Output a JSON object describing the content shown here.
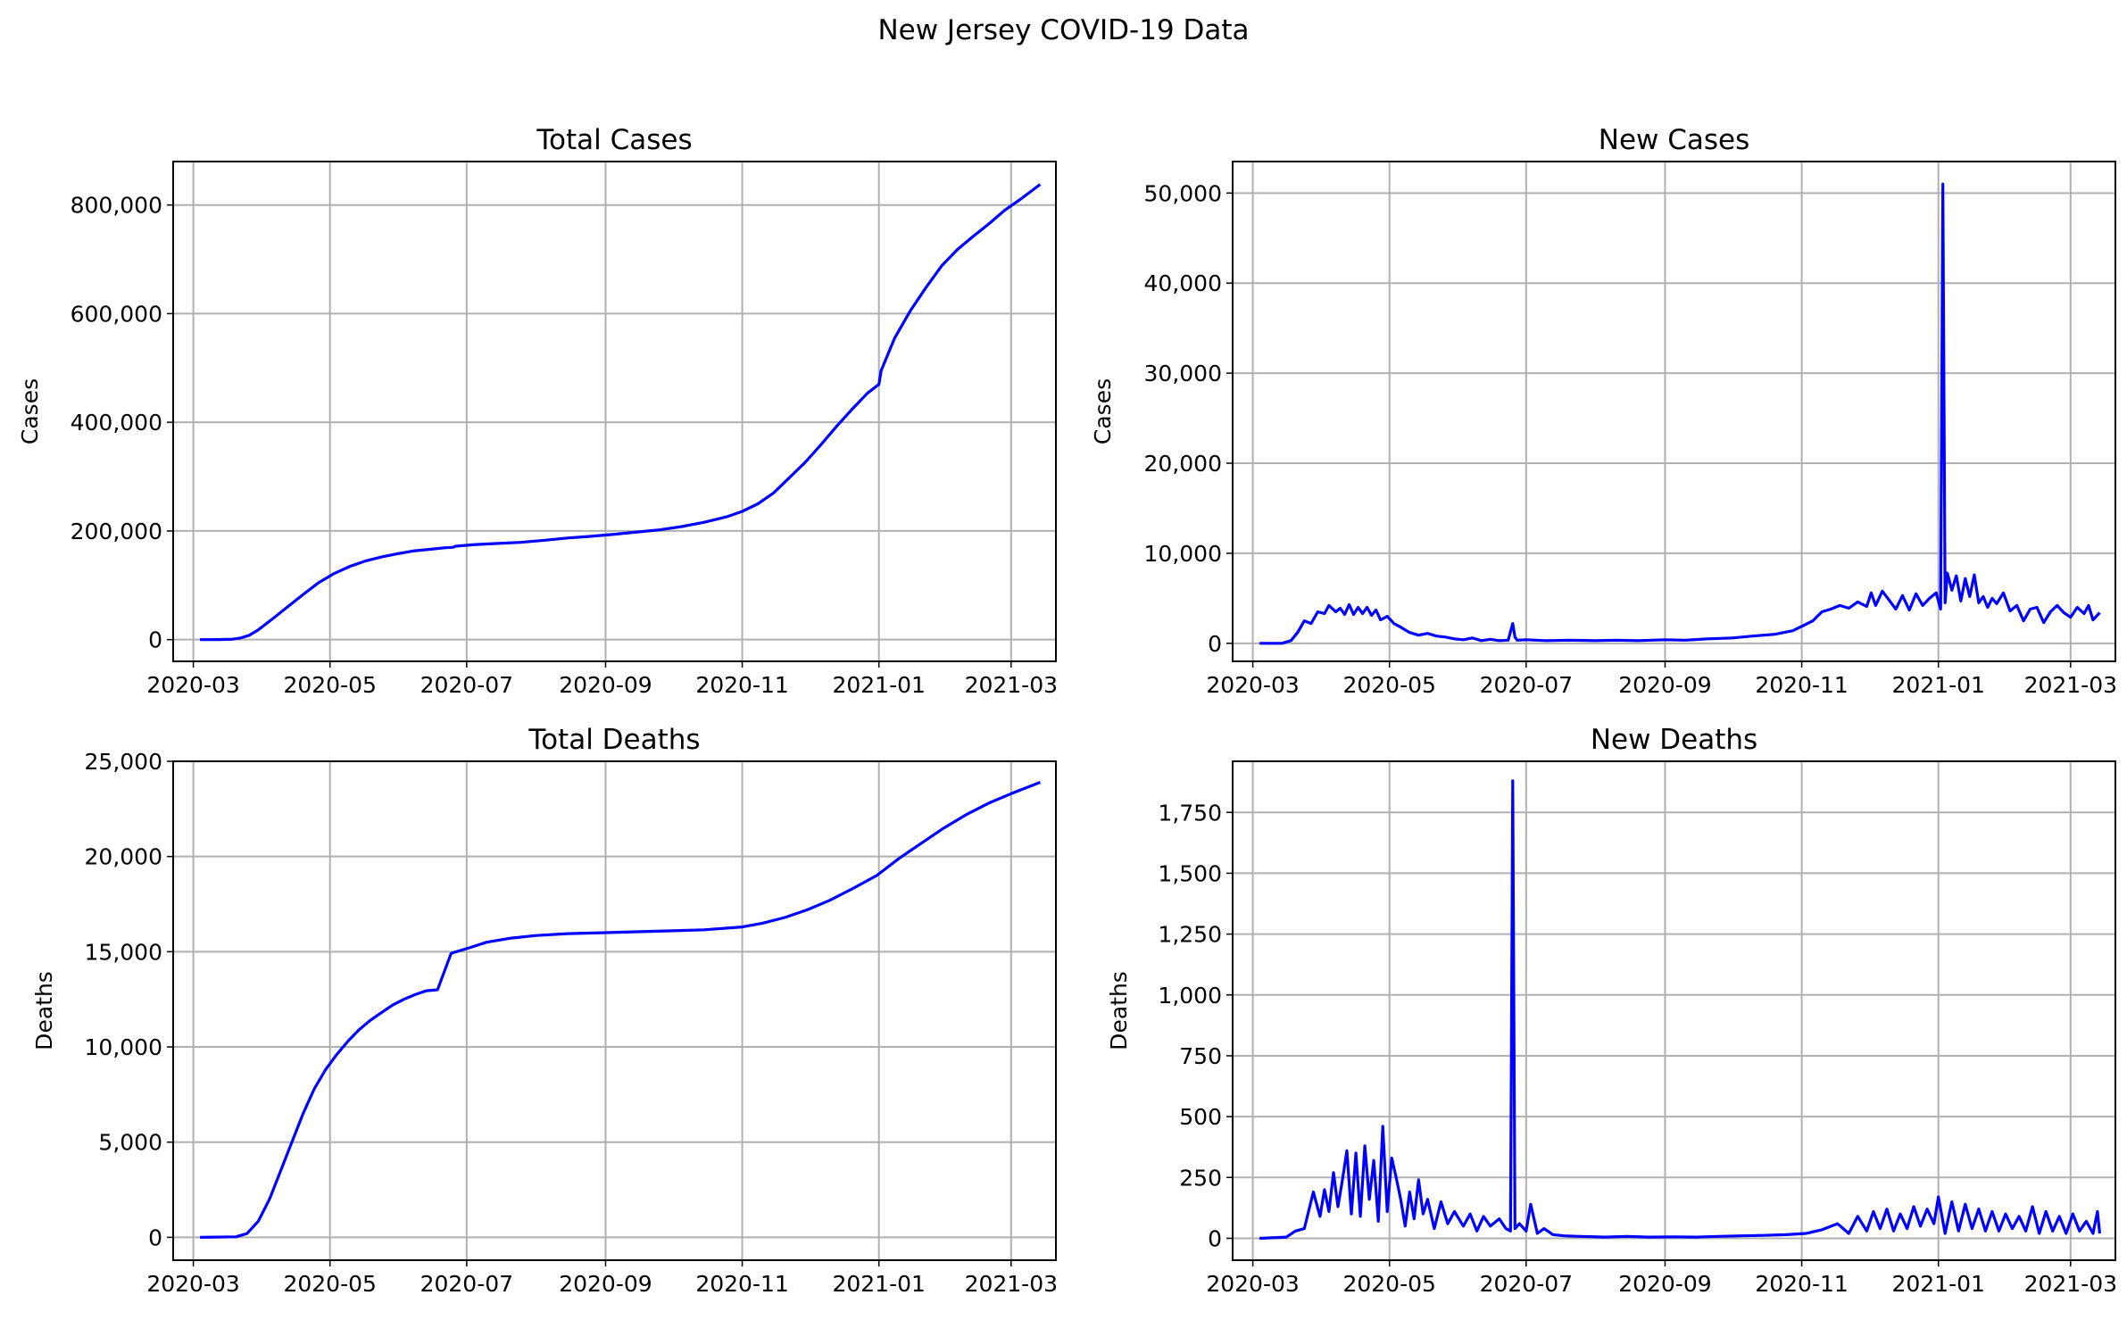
{
  "figure": {
    "title": "New Jersey COVID-19 Data"
  },
  "colors": {
    "line": "#0000ff",
    "grid": "#b0b0b0",
    "axes": "#000000"
  },
  "chart_data": [
    {
      "id": "total-cases",
      "type": "line",
      "title": "Total Cases",
      "xlabel": "",
      "ylabel": "Cases",
      "xlim": [
        "2020-02-21",
        "2021-03-21"
      ],
      "ylim": [
        -40000,
        880000
      ],
      "xticks": [
        "2020-03",
        "2020-05",
        "2020-07",
        "2020-09",
        "2020-11",
        "2021-01",
        "2021-03"
      ],
      "yticks": [
        0,
        200000,
        400000,
        600000,
        800000
      ],
      "ytick_labels": [
        "0",
        "200,000",
        "400,000",
        "600,000",
        "800,000"
      ],
      "grid": true,
      "series": [
        {
          "x": [
            "2020-03-04",
            "2020-03-12",
            "2020-03-18",
            "2020-03-22",
            "2020-03-26",
            "2020-03-30",
            "2020-04-05",
            "2020-04-12",
            "2020-04-19",
            "2020-04-26",
            "2020-05-03",
            "2020-05-10",
            "2020-05-17",
            "2020-05-24",
            "2020-05-31",
            "2020-06-07",
            "2020-06-14",
            "2020-06-21",
            "2020-06-25",
            "2020-06-26",
            "2020-07-05",
            "2020-07-15",
            "2020-07-25",
            "2020-08-05",
            "2020-08-15",
            "2020-08-25",
            "2020-09-05",
            "2020-09-15",
            "2020-09-25",
            "2020-10-05",
            "2020-10-15",
            "2020-10-25",
            "2020-11-01",
            "2020-11-08",
            "2020-11-15",
            "2020-11-22",
            "2020-11-29",
            "2020-12-06",
            "2020-12-13",
            "2020-12-20",
            "2020-12-27",
            "2021-01-01",
            "2021-01-02",
            "2021-01-08",
            "2021-01-15",
            "2021-01-22",
            "2021-01-29",
            "2021-02-05",
            "2021-02-12",
            "2021-02-19",
            "2021-02-26",
            "2021-03-05",
            "2021-03-14"
          ],
          "y": [
            0,
            100,
            600,
            2800,
            8000,
            18000,
            37000,
            60000,
            83000,
            105000,
            122000,
            135000,
            145000,
            152000,
            158000,
            163000,
            166000,
            169000,
            170000,
            172000,
            175000,
            177000,
            179000,
            183000,
            187000,
            190000,
            194000,
            198000,
            202000,
            208000,
            216000,
            226000,
            236000,
            250000,
            270000,
            298000,
            326000,
            358000,
            392000,
            424000,
            454000,
            470000,
            495000,
            555000,
            605000,
            648000,
            688000,
            718000,
            742000,
            765000,
            790000,
            810000,
            838000
          ]
        }
      ]
    },
    {
      "id": "new-cases",
      "type": "line",
      "title": "New Cases",
      "xlabel": "",
      "ylabel": "Cases",
      "xlim": [
        "2020-02-21",
        "2021-03-21"
      ],
      "ylim": [
        -2000,
        53500
      ],
      "xticks": [
        "2020-03",
        "2020-05",
        "2020-07",
        "2020-09",
        "2020-11",
        "2021-01",
        "2021-03"
      ],
      "yticks": [
        0,
        10000,
        20000,
        30000,
        40000,
        50000
      ],
      "ytick_labels": [
        "0",
        "10,000",
        "20,000",
        "30,000",
        "40,000",
        "50,000"
      ],
      "grid": true,
      "series": [
        {
          "x": [
            "2020-03-04",
            "2020-03-14",
            "2020-03-18",
            "2020-03-21",
            "2020-03-24",
            "2020-03-27",
            "2020-03-30",
            "2020-04-02",
            "2020-04-04",
            "2020-04-07",
            "2020-04-09",
            "2020-04-11",
            "2020-04-13",
            "2020-04-15",
            "2020-04-17",
            "2020-04-19",
            "2020-04-21",
            "2020-04-23",
            "2020-04-25",
            "2020-04-27",
            "2020-04-30",
            "2020-05-03",
            "2020-05-06",
            "2020-05-10",
            "2020-05-14",
            "2020-05-18",
            "2020-05-22",
            "2020-05-26",
            "2020-05-30",
            "2020-06-03",
            "2020-06-07",
            "2020-06-11",
            "2020-06-15",
            "2020-06-19",
            "2020-06-23",
            "2020-06-25",
            "2020-06-26",
            "2020-06-27",
            "2020-07-01",
            "2020-07-10",
            "2020-07-20",
            "2020-08-01",
            "2020-08-10",
            "2020-08-20",
            "2020-09-01",
            "2020-09-10",
            "2020-09-20",
            "2020-10-01",
            "2020-10-10",
            "2020-10-20",
            "2020-10-28",
            "2020-11-02",
            "2020-11-06",
            "2020-11-10",
            "2020-11-14",
            "2020-11-18",
            "2020-11-22",
            "2020-11-26",
            "2020-11-30",
            "2020-12-02",
            "2020-12-04",
            "2020-12-07",
            "2020-12-10",
            "2020-12-13",
            "2020-12-16",
            "2020-12-19",
            "2020-12-22",
            "2020-12-25",
            "2020-12-28",
            "2020-12-31",
            "2021-01-02",
            "2021-01-03",
            "2021-01-04",
            "2021-01-05",
            "2021-01-07",
            "2021-01-09",
            "2021-01-11",
            "2021-01-13",
            "2021-01-15",
            "2021-01-17",
            "2021-01-19",
            "2021-01-21",
            "2021-01-23",
            "2021-01-25",
            "2021-01-27",
            "2021-01-30",
            "2021-02-02",
            "2021-02-05",
            "2021-02-08",
            "2021-02-11",
            "2021-02-14",
            "2021-02-17",
            "2021-02-20",
            "2021-02-23",
            "2021-02-26",
            "2021-03-01",
            "2021-03-04",
            "2021-03-07",
            "2021-03-09",
            "2021-03-11",
            "2021-03-14"
          ],
          "y": [
            0,
            0,
            300,
            1200,
            2500,
            2200,
            3500,
            3300,
            4200,
            3500,
            3900,
            3200,
            4300,
            3200,
            4000,
            3300,
            4000,
            3100,
            3700,
            2600,
            3000,
            2200,
            1800,
            1200,
            900,
            1100,
            800,
            700,
            500,
            400,
            600,
            300,
            450,
            300,
            350,
            2200,
            700,
            350,
            400,
            300,
            350,
            300,
            350,
            300,
            400,
            350,
            500,
            600,
            800,
            1000,
            1400,
            2000,
            2500,
            3500,
            3800,
            4200,
            3900,
            4600,
            4100,
            5600,
            4200,
            5800,
            4800,
            3800,
            5300,
            3700,
            5500,
            4200,
            5000,
            5600,
            3800,
            51000,
            4500,
            7800,
            5900,
            7500,
            4700,
            7200,
            5200,
            7600,
            4500,
            5200,
            4000,
            5000,
            4400,
            5600,
            3600,
            4200,
            2500,
            3800,
            4000,
            2300,
            3500,
            4200,
            3400,
            2900,
            4000,
            3300,
            4200,
            2600,
            3400
          ]
        }
      ]
    },
    {
      "id": "total-deaths",
      "type": "line",
      "title": "Total Deaths",
      "xlabel": "",
      "ylabel": "Deaths",
      "xlim": [
        "2020-02-21",
        "2021-03-21"
      ],
      "ylim": [
        -1200,
        25000
      ],
      "xticks": [
        "2020-03",
        "2020-05",
        "2020-07",
        "2020-09",
        "2020-11",
        "2021-01",
        "2021-03"
      ],
      "yticks": [
        0,
        5000,
        10000,
        15000,
        20000,
        25000
      ],
      "ytick_labels": [
        "0",
        "5,000",
        "10,000",
        "15,000",
        "20,000",
        "25,000"
      ],
      "grid": true,
      "series": [
        {
          "x": [
            "2020-03-04",
            "2020-03-20",
            "2020-03-25",
            "2020-03-30",
            "2020-04-04",
            "2020-04-09",
            "2020-04-14",
            "2020-04-19",
            "2020-04-24",
            "2020-04-29",
            "2020-05-04",
            "2020-05-09",
            "2020-05-14",
            "2020-05-19",
            "2020-05-24",
            "2020-05-29",
            "2020-06-03",
            "2020-06-08",
            "2020-06-13",
            "2020-06-18",
            "2020-06-24",
            "2020-06-25",
            "2020-07-02",
            "2020-07-10",
            "2020-07-20",
            "2020-08-01",
            "2020-08-15",
            "2020-09-01",
            "2020-09-15",
            "2020-10-01",
            "2020-10-15",
            "2020-11-01",
            "2020-11-10",
            "2020-11-20",
            "2020-11-30",
            "2020-12-10",
            "2020-12-20",
            "2020-12-31",
            "2021-01-10",
            "2021-01-20",
            "2021-01-30",
            "2021-02-09",
            "2021-02-19",
            "2021-03-01",
            "2021-03-14"
          ],
          "y": [
            0,
            30,
            200,
            850,
            2000,
            3500,
            5000,
            6500,
            7800,
            8800,
            9600,
            10300,
            10900,
            11400,
            11800,
            12200,
            12500,
            12750,
            12950,
            13000,
            14900,
            14950,
            15200,
            15500,
            15700,
            15850,
            15950,
            16000,
            16050,
            16100,
            16150,
            16300,
            16500,
            16800,
            17200,
            17700,
            18300,
            19000,
            19900,
            20700,
            21500,
            22200,
            22800,
            23300,
            23900
          ]
        }
      ]
    },
    {
      "id": "new-deaths",
      "type": "line",
      "title": "New Deaths",
      "xlabel": "",
      "ylabel": "Deaths",
      "xlim": [
        "2020-02-21",
        "2021-03-21"
      ],
      "ylim": [
        -90,
        1960
      ],
      "xticks": [
        "2020-03",
        "2020-05",
        "2020-07",
        "2020-09",
        "2020-11",
        "2021-01",
        "2021-03"
      ],
      "yticks": [
        0,
        250,
        500,
        750,
        1000,
        1250,
        1500,
        1750
      ],
      "ytick_labels": [
        "0",
        "250",
        "500",
        "750",
        "1,000",
        "1,250",
        "1,500",
        "1,750"
      ],
      "grid": true,
      "series": [
        {
          "x": [
            "2020-03-04",
            "2020-03-16",
            "2020-03-20",
            "2020-03-24",
            "2020-03-28",
            "2020-03-31",
            "2020-04-02",
            "2020-04-04",
            "2020-04-06",
            "2020-04-08",
            "2020-04-10",
            "2020-04-12",
            "2020-04-14",
            "2020-04-16",
            "2020-04-18",
            "2020-04-20",
            "2020-04-22",
            "2020-04-24",
            "2020-04-26",
            "2020-04-28",
            "2020-04-30",
            "2020-05-02",
            "2020-05-04",
            "2020-05-06",
            "2020-05-08",
            "2020-05-10",
            "2020-05-12",
            "2020-05-14",
            "2020-05-16",
            "2020-05-18",
            "2020-05-21",
            "2020-05-24",
            "2020-05-27",
            "2020-05-30",
            "2020-06-03",
            "2020-06-06",
            "2020-06-09",
            "2020-06-12",
            "2020-06-15",
            "2020-06-19",
            "2020-06-22",
            "2020-06-24",
            "2020-06-25",
            "2020-06-26",
            "2020-06-28",
            "2020-07-01",
            "2020-07-03",
            "2020-07-06",
            "2020-07-09",
            "2020-07-13",
            "2020-07-18",
            "2020-07-25",
            "2020-08-05",
            "2020-08-15",
            "2020-08-25",
            "2020-09-05",
            "2020-09-15",
            "2020-09-25",
            "2020-10-05",
            "2020-10-15",
            "2020-10-25",
            "2020-11-03",
            "2020-11-10",
            "2020-11-17",
            "2020-11-22",
            "2020-11-26",
            "2020-11-30",
            "2020-12-03",
            "2020-12-06",
            "2020-12-09",
            "2020-12-12",
            "2020-12-15",
            "2020-12-18",
            "2020-12-21",
            "2020-12-24",
            "2020-12-27",
            "2020-12-30",
            "2021-01-01",
            "2021-01-04",
            "2021-01-07",
            "2021-01-10",
            "2021-01-13",
            "2021-01-16",
            "2021-01-19",
            "2021-01-22",
            "2021-01-25",
            "2021-01-28",
            "2021-01-31",
            "2021-02-03",
            "2021-02-06",
            "2021-02-09",
            "2021-02-12",
            "2021-02-15",
            "2021-02-18",
            "2021-02-21",
            "2021-02-24",
            "2021-02-27",
            "2021-03-02",
            "2021-03-05",
            "2021-03-08",
            "2021-03-11",
            "2021-03-13",
            "2021-03-14"
          ],
          "y": [
            0,
            5,
            30,
            40,
            190,
            90,
            200,
            110,
            270,
            130,
            240,
            360,
            100,
            350,
            90,
            380,
            160,
            320,
            70,
            460,
            110,
            330,
            250,
            160,
            50,
            190,
            80,
            240,
            100,
            160,
            40,
            150,
            60,
            110,
            50,
            100,
            30,
            90,
            50,
            80,
            40,
            30,
            1880,
            40,
            60,
            30,
            140,
            20,
            40,
            15,
            10,
            8,
            5,
            8,
            5,
            6,
            5,
            8,
            10,
            12,
            15,
            20,
            35,
            60,
            20,
            90,
            30,
            110,
            40,
            120,
            30,
            100,
            40,
            130,
            50,
            120,
            60,
            170,
            20,
            150,
            30,
            140,
            40,
            120,
            30,
            110,
            30,
            100,
            40,
            90,
            30,
            130,
            20,
            110,
            30,
            90,
            20,
            100,
            30,
            70,
            20,
            110,
            20
          ]
        }
      ]
    }
  ]
}
